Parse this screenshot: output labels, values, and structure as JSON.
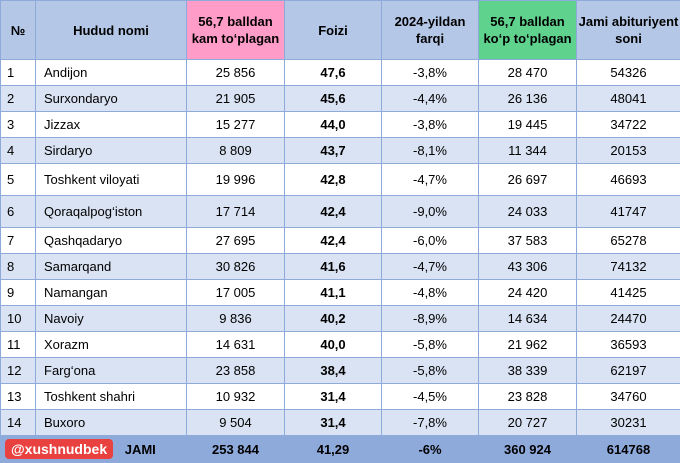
{
  "headers": {
    "num": "№",
    "region": "Hudud nomi",
    "below": "56,7 balldan kam to‘plagan",
    "percent": "Foizi",
    "diff": "2024-yildan farqi",
    "above": "56,7 balldan ko‘p to‘plagan",
    "total": "Jami abituriyent soni"
  },
  "rows": [
    {
      "num": "1",
      "region": "Andijon",
      "below": "25 856",
      "percent": "47,6",
      "diff": "-3,8%",
      "above": "28 470",
      "total": "54326"
    },
    {
      "num": "2",
      "region": "Surxondaryo",
      "below": "21 905",
      "percent": "45,6",
      "diff": "-4,4%",
      "above": "26 136",
      "total": "48041"
    },
    {
      "num": "3",
      "region": "Jizzax",
      "below": "15 277",
      "percent": "44,0",
      "diff": "-3,8%",
      "above": "19 445",
      "total": "34722"
    },
    {
      "num": "4",
      "region": "Sirdaryo",
      "below": "8 809",
      "percent": "43,7",
      "diff": "-8,1%",
      "above": "11 344",
      "total": "20153"
    },
    {
      "num": "5",
      "region": "Toshkent viloyati",
      "below": "19 996",
      "percent": "42,8",
      "diff": "-4,7%",
      "above": "26 697",
      "total": "46693"
    },
    {
      "num": "6",
      "region": "Qoraqalpog‘iston",
      "below": "17 714",
      "percent": "42,4",
      "diff": "-9,0%",
      "above": "24 033",
      "total": "41747"
    },
    {
      "num": "7",
      "region": "Qashqadaryo",
      "below": "27 695",
      "percent": "42,4",
      "diff": "-6,0%",
      "above": "37 583",
      "total": "65278"
    },
    {
      "num": "8",
      "region": "Samarqand",
      "below": "30 826",
      "percent": "41,6",
      "diff": "-4,7%",
      "above": "43 306",
      "total": "74132"
    },
    {
      "num": "9",
      "region": "Namangan",
      "below": "17 005",
      "percent": "41,1",
      "diff": "-4,8%",
      "above": "24 420",
      "total": "41425"
    },
    {
      "num": "10",
      "region": "Navoiy",
      "below": "9 836",
      "percent": "40,2",
      "diff": "-8,9%",
      "above": "14 634",
      "total": "24470"
    },
    {
      "num": "11",
      "region": "Xorazm",
      "below": "14 631",
      "percent": "40,0",
      "diff": "-5,8%",
      "above": "21 962",
      "total": "36593"
    },
    {
      "num": "12",
      "region": "Farg‘ona",
      "below": "23 858",
      "percent": "38,4",
      "diff": "-5,8%",
      "above": "38 339",
      "total": "62197"
    },
    {
      "num": "13",
      "region": "Toshkent shahri",
      "below": "10 932",
      "percent": "31,4",
      "diff": "-4,5%",
      "above": "23 828",
      "total": "34760"
    },
    {
      "num": "14",
      "region": "Buxoro",
      "below": "9 504",
      "percent": "31,4",
      "diff": "-7,8%",
      "above": "20 727",
      "total": "30231"
    }
  ],
  "footer": {
    "tag": "@xushnudbek",
    "label": "JAMI",
    "below": "253 844",
    "percent": "41,29",
    "diff": "-6%",
    "above": "360 924",
    "total": "614768"
  },
  "colors": {
    "header": "#b4c7e7",
    "header_pink": "#ff9cc8",
    "header_green": "#5fd38d",
    "stripe": "#dae3f3",
    "footer": "#8eaadb",
    "tag": "#e94040"
  }
}
